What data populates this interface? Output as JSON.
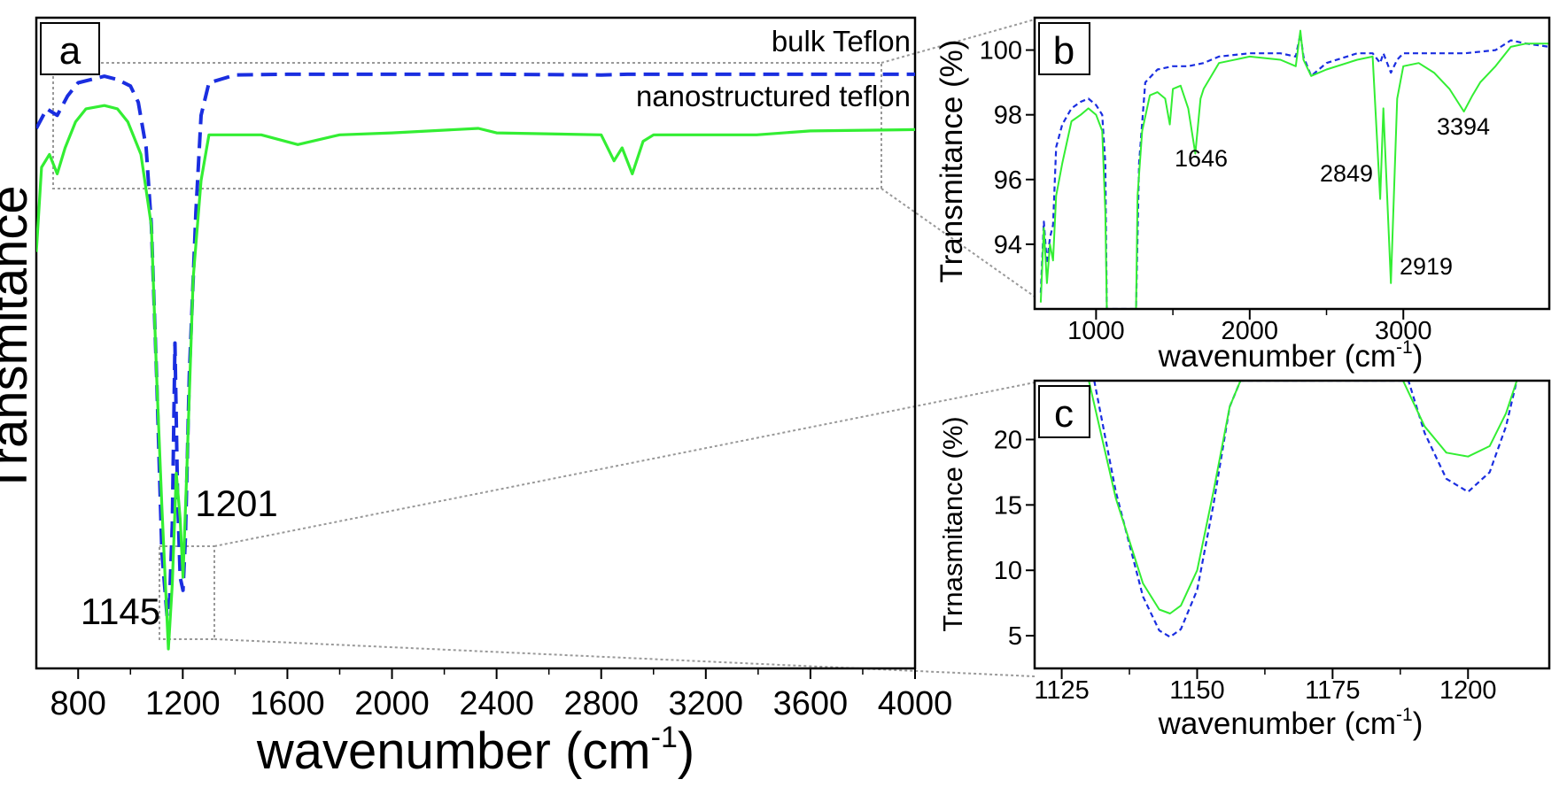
{
  "chart_data": [
    {
      "panel": "a",
      "type": "line",
      "xlabel": "wavenumber (cm",
      "xlabel_sup": "-1",
      "xlabel_close": ")",
      "ylabel": "Transmitance",
      "xlim": [
        640,
        4000
      ],
      "ylim": [
        0,
        100
      ],
      "x_ticks": [
        "800",
        "1200",
        "1600",
        "2000",
        "2400",
        "2800",
        "3200",
        "3600",
        "4000"
      ],
      "grid": false,
      "legend_position": "top-right",
      "series": [
        {
          "name": "bulk Teflon",
          "color": "#1a2ee0",
          "style": "dashed",
          "x": [
            640,
            680,
            720,
            760,
            800,
            850,
            900,
            950,
            1000,
            1030,
            1060,
            1080,
            1100,
            1120,
            1140,
            1150,
            1160,
            1170,
            1180,
            1190,
            1201,
            1210,
            1225,
            1250,
            1270,
            1300,
            1400,
            1600,
            2000,
            2400,
            2800,
            2900,
            3200,
            3600,
            4000
          ],
          "y": [
            83,
            86,
            85,
            88,
            90,
            90.5,
            91,
            90.5,
            89.5,
            87,
            80,
            68,
            45,
            18,
            8,
            11,
            22,
            50,
            27,
            14,
            12,
            20,
            45,
            70,
            85,
            90,
            91.2,
            91.3,
            91.3,
            91.3,
            91.2,
            91.3,
            91.3,
            91.3,
            91.3
          ]
        },
        {
          "name": "nanostructured teflon",
          "color": "#33ee33",
          "style": "solid",
          "x": [
            640,
            660,
            690,
            720,
            750,
            790,
            830,
            900,
            950,
            990,
            1040,
            1080,
            1100,
            1120,
            1145,
            1160,
            1175,
            1190,
            1201,
            1215,
            1240,
            1270,
            1300,
            1350,
            1500,
            1640,
            1800,
            2000,
            2330,
            2400,
            2800,
            2849,
            2880,
            2919,
            2960,
            3000,
            3394,
            3600,
            4000
          ],
          "y": [
            64,
            77,
            79,
            76,
            80,
            84,
            86,
            86.5,
            86,
            84,
            79,
            68,
            45,
            25,
            3,
            13,
            30,
            23,
            14,
            30,
            60,
            75,
            82,
            82,
            82,
            80.5,
            82,
            82.3,
            83,
            82.3,
            82,
            78,
            80,
            76,
            81,
            82,
            82,
            82.6,
            82.8
          ]
        }
      ],
      "annotations": [
        "1145",
        "1201"
      ]
    },
    {
      "panel": "b",
      "type": "line",
      "xlabel": "wavenumber (cm",
      "xlabel_sup": "-1",
      "xlabel_close": ")",
      "ylabel": "Transmitance (%)",
      "xlim": [
        600,
        3950
      ],
      "ylim": [
        92,
        101
      ],
      "y_ticks": [
        "94",
        "96",
        "98",
        "100"
      ],
      "x_ticks": [
        "1000",
        "2000",
        "3000"
      ],
      "grid": false,
      "series": [
        {
          "name": "",
          "color": "#1a2ee0",
          "style": "dashed",
          "x": [
            640,
            660,
            680,
            700,
            720,
            740,
            780,
            840,
            900,
            950,
            1000,
            1040,
            1060,
            1070,
            1260,
            1280,
            1320,
            1400,
            1500,
            1600,
            1700,
            1800,
            2000,
            2200,
            2300,
            2330,
            2350,
            2400,
            2500,
            2700,
            2800,
            2849,
            2870,
            2919,
            2960,
            3000,
            3200,
            3400,
            3600,
            3700,
            3800,
            3950
          ],
          "y": [
            92.5,
            94.7,
            93.4,
            94.2,
            94.6,
            97.0,
            97.7,
            98.2,
            98.4,
            98.5,
            98.3,
            98.0,
            96.5,
            92.0,
            92.0,
            96.5,
            99.0,
            99.4,
            99.5,
            99.5,
            99.6,
            99.8,
            99.9,
            99.9,
            99.8,
            100.5,
            99.8,
            99.2,
            99.6,
            99.9,
            99.9,
            99.6,
            99.9,
            99.3,
            99.7,
            99.9,
            99.9,
            99.9,
            100.0,
            100.3,
            100.2,
            100.1
          ]
        },
        {
          "name": "",
          "color": "#33ee33",
          "style": "solid",
          "x": [
            640,
            660,
            680,
            700,
            720,
            740,
            780,
            840,
            900,
            950,
            1000,
            1040,
            1060,
            1070,
            1260,
            1270,
            1300,
            1350,
            1400,
            1450,
            1480,
            1500,
            1550,
            1600,
            1646,
            1680,
            1700,
            1800,
            2000,
            2200,
            2300,
            2330,
            2350,
            2400,
            2500,
            2700,
            2800,
            2849,
            2870,
            2919,
            2960,
            3000,
            3100,
            3200,
            3300,
            3394,
            3450,
            3500,
            3600,
            3700,
            3800,
            3950
          ],
          "y": [
            92.2,
            94.5,
            92.8,
            94.0,
            93.5,
            95.5,
            96.5,
            97.8,
            98.0,
            98.2,
            98.0,
            97.5,
            95.0,
            92.0,
            92.0,
            95.5,
            97.5,
            98.6,
            98.7,
            98.5,
            97.7,
            98.8,
            98.9,
            98.2,
            96.8,
            98.5,
            98.8,
            99.6,
            99.8,
            99.7,
            99.5,
            100.6,
            99.7,
            99.2,
            99.4,
            99.7,
            99.8,
            95.4,
            98.2,
            92.8,
            98.5,
            99.5,
            99.6,
            99.3,
            98.8,
            98.1,
            98.6,
            99.0,
            99.5,
            100.1,
            100.2,
            100.2
          ]
        }
      ],
      "annotations": [
        "1646",
        "2849",
        "2919",
        "3394"
      ]
    },
    {
      "panel": "c",
      "type": "line",
      "xlabel": "wavenumber (cm",
      "xlabel_sup": "-1",
      "xlabel_close": ")",
      "ylabel": "Trnasmitance (%)",
      "xlim": [
        1120,
        1215
      ],
      "ylim": [
        2.5,
        24.5
      ],
      "y_ticks": [
        "5",
        "10",
        "15",
        "20"
      ],
      "x_ticks": [
        "1125",
        "1150",
        "1175",
        "1200"
      ],
      "grid": false,
      "series": [
        {
          "name": "",
          "color": "#1a2ee0",
          "style": "dashed",
          "x": [
            1131,
            1135,
            1140,
            1143,
            1145,
            1147,
            1150,
            1153,
            1156,
            1158,
            1189,
            1192,
            1196,
            1200,
            1204,
            1207,
            1209
          ],
          "y": [
            24.5,
            16.0,
            8.0,
            5.4,
            4.9,
            5.5,
            8.5,
            15.0,
            22.5,
            24.5,
            24.5,
            20.5,
            17.0,
            16.0,
            17.5,
            21.0,
            24.5
          ]
        },
        {
          "name": "",
          "color": "#33ee33",
          "style": "solid",
          "x": [
            1130,
            1135,
            1140,
            1143,
            1145,
            1147,
            1150,
            1153,
            1156,
            1158,
            1188,
            1192,
            1196,
            1200,
            1204,
            1207,
            1209
          ],
          "y": [
            24.5,
            15.5,
            9.0,
            7.0,
            6.7,
            7.3,
            10.0,
            16.0,
            22.5,
            24.5,
            24.5,
            21.0,
            19.0,
            18.7,
            19.5,
            22.0,
            24.5
          ]
        }
      ]
    }
  ]
}
